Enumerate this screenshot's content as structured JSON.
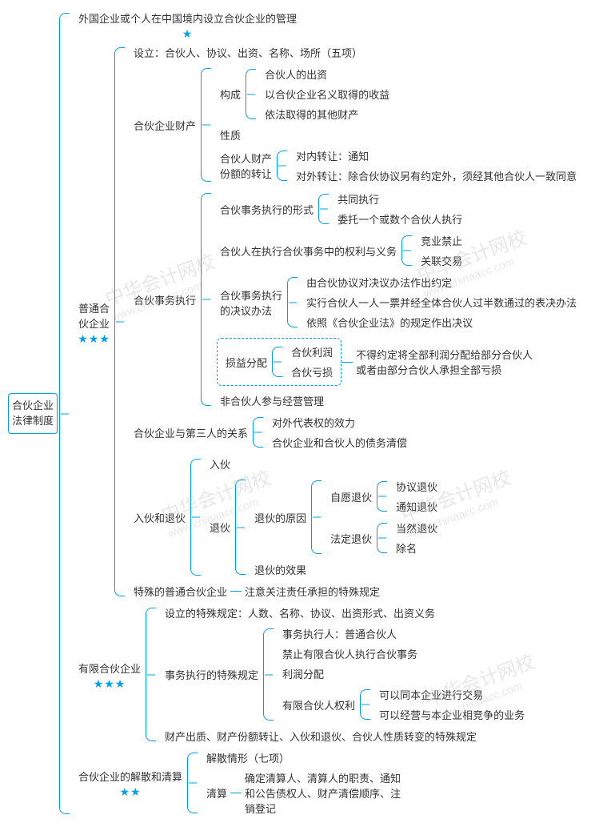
{
  "colors": {
    "line": "#00a0e9",
    "text": "#333333",
    "bg": "#ffffff",
    "watermark": "#bbbbbb"
  },
  "fontsize": 13,
  "root": "合伙企业\n法律制度",
  "top": {
    "title": "外国企业或个人在中国境内设立合伙企业的管理",
    "stars": "★"
  },
  "general": {
    "title": "普通合\n伙企业",
    "stars": "★★★",
    "establish": "设立：合伙人、协议、出资、名称、场所（五项）",
    "property": {
      "label": "合伙企业财产",
      "composition": {
        "label": "构成",
        "items": [
          "合伙人的出资",
          "以合伙企业名义取得的收益",
          "依法取得的其他财产"
        ]
      },
      "nature": "性质",
      "transfer": {
        "label": "合伙人财产\n份额的转让",
        "internal": "对内转让：通知",
        "external": "对外转让：除合伙协议另有约定外，须经其他合伙人一致同意"
      }
    },
    "execution": {
      "label": "合伙事务执行",
      "form": {
        "label": "合伙事务执行的形式",
        "items": [
          "共同执行",
          "委托一个或数个合伙人执行"
        ]
      },
      "rights": {
        "label": "合伙人在执行合伙事务中的权利与义务",
        "items": [
          "竞业禁止",
          "关联交易"
        ]
      },
      "resolution": {
        "label": "合伙事务执行\n的决议办法",
        "items": [
          "由合伙协议对决议办法作出约定",
          "实行合伙人一人一票并经全体合伙人过半数通过的表决办法",
          "依照《合伙企业法》的规定作出决议"
        ]
      },
      "profit": {
        "label": "损益分配",
        "items": [
          "合伙利润",
          "合伙亏损"
        ],
        "note": "不得约定将全部利润分配给部分合伙人\n或者由部分合伙人承担全部亏损"
      },
      "nonpartner": "非合伙人参与经营管理"
    },
    "third": {
      "label": "合伙企业与第三人的关系",
      "items": [
        "对外代表权的效力",
        "合伙企业和合伙人的债务清偿"
      ]
    },
    "joinexit": {
      "label": "入伙和退伙",
      "join": "入伙",
      "exit": {
        "label": "退伙",
        "reason": {
          "label": "退伙的原因",
          "voluntary": {
            "label": "自愿退伙",
            "items": [
              "协议退伙",
              "通知退伙"
            ]
          },
          "statutory": {
            "label": "法定退伙",
            "items": [
              "当然退伙",
              "除名"
            ]
          }
        },
        "effect": "退伙的效果"
      }
    },
    "special": {
      "label": "特殊的普通合伙企业",
      "note": "注意关注责任承担的特殊规定"
    }
  },
  "limited": {
    "title": "有限合伙企业",
    "stars": "★★★",
    "establish": "设立的特殊规定：人数、名称、协议、出资形式、出资义务",
    "execution": {
      "label": "事务执行的特殊规定",
      "items": [
        "事务执行人：普通合伙人",
        "禁止有限合伙人执行合伙事务",
        "利润分配"
      ],
      "rights": {
        "label": "有限合伙人权利",
        "items": [
          "可以同本企业进行交易",
          "可以经营与本企业相竞争的业务"
        ]
      }
    },
    "property": "财产出质、财产份额转让、入伙和退伙、合伙人性质转变的特殊规定"
  },
  "dissolve": {
    "title": "合伙企业的解散和清算",
    "stars": "★★",
    "situation": "解散情形（七项）",
    "liquidation": {
      "label": "清算",
      "note": "确定清算人、清算人的职责、通知\n和公告债权人、财产清偿顺序、注\n销登记"
    }
  },
  "watermark": {
    "text": "中华会计网校",
    "sub": "www.chinaacc.com"
  }
}
